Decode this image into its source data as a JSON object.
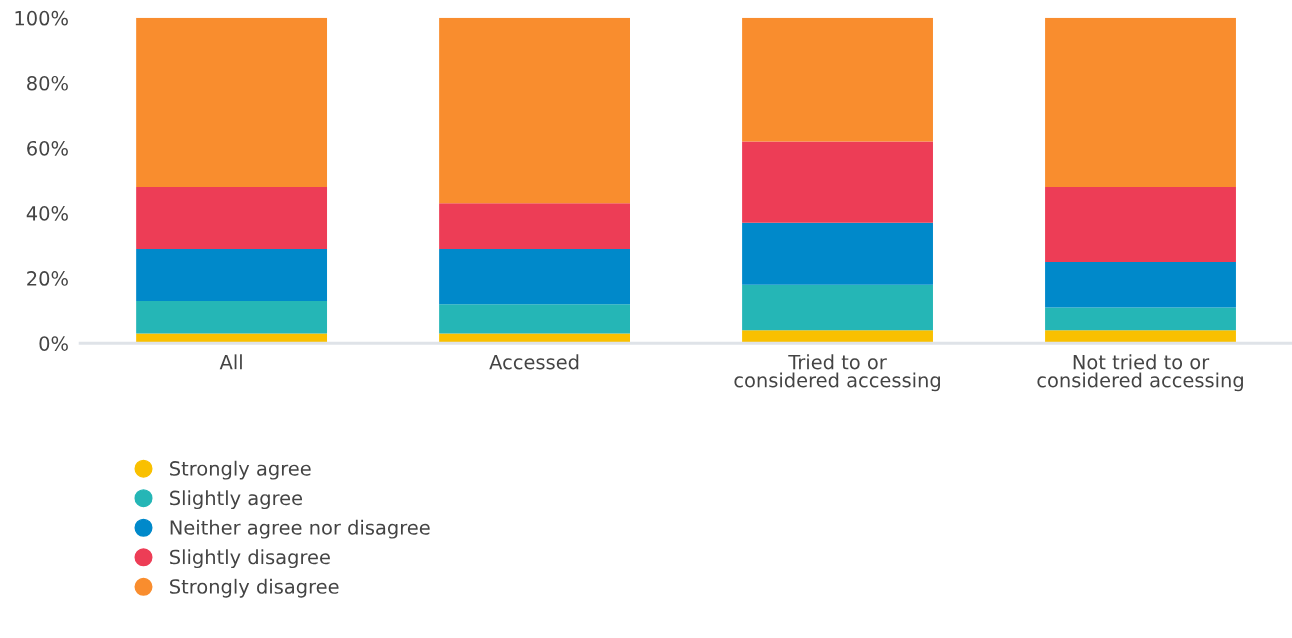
{
  "chart_data": {
    "type": "bar",
    "stacked": true,
    "categories": [
      "All",
      "Accessed",
      "Tried to or\nconsidered accessing",
      "Not tried to or\nconsidered accessing"
    ],
    "series": [
      {
        "name": "Strongly agree",
        "color": "#f9c000",
        "values": [
          3,
          3,
          4,
          4
        ]
      },
      {
        "name": "Slightly agree",
        "color": "#25b6b6",
        "values": [
          10,
          9,
          14,
          7
        ]
      },
      {
        "name": "Neither agree nor disagree",
        "color": "#0089ca",
        "values": [
          16,
          17,
          19,
          14
        ]
      },
      {
        "name": "Slightly disagree",
        "color": "#ed3d56",
        "values": [
          19,
          14,
          25,
          23
        ]
      },
      {
        "name": "Strongly disagree",
        "color": "#f98d2e",
        "values": [
          52,
          57,
          38,
          52
        ]
      }
    ],
    "ylim": [
      0,
      100
    ],
    "yticks": [
      {
        "value": 0,
        "label": "0%"
      },
      {
        "value": 20,
        "label": "20%"
      },
      {
        "value": 40,
        "label": "40%"
      },
      {
        "value": 60,
        "label": "60%"
      },
      {
        "value": 80,
        "label": "80%"
      },
      {
        "value": 100,
        "label": "100%"
      }
    ],
    "grid": false,
    "legend": "bottom left",
    "marker": "circle"
  }
}
